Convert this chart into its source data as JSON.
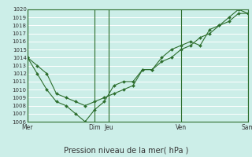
{
  "xlabel": "Pression niveau de la mer( hPa )",
  "ylim": [
    1006,
    1020
  ],
  "yticks": [
    1006,
    1007,
    1008,
    1009,
    1010,
    1011,
    1012,
    1013,
    1014,
    1015,
    1016,
    1017,
    1018,
    1019,
    1020
  ],
  "bg_color": "#cceee8",
  "line_color": "#2d6e2d",
  "grid_color": "#ffffff",
  "xtick_labels": [
    "Mer",
    "Dim",
    "Jeu",
    "Ven",
    "Sam"
  ],
  "xtick_positions": [
    0,
    7,
    8.5,
    16,
    23
  ],
  "vline_positions": [
    0,
    7,
    8.5,
    16,
    23
  ],
  "line1_x": [
    0,
    1,
    2,
    3,
    4,
    5,
    6,
    7,
    8,
    9,
    10,
    11,
    12,
    13,
    14,
    15,
    16,
    17,
    18,
    19,
    20,
    21,
    22,
    23
  ],
  "line1_y": [
    1014,
    1013,
    1012,
    1009.5,
    1009,
    1008.5,
    1008,
    1008.5,
    1009,
    1009.5,
    1010,
    1010.5,
    1012.5,
    1012.5,
    1014,
    1015,
    1015.5,
    1016,
    1015.5,
    1017.5,
    1018,
    1019,
    1020,
    1019.5
  ],
  "line2_x": [
    0,
    1,
    2,
    3,
    4,
    5,
    6,
    7,
    8,
    9,
    10,
    11,
    12,
    13,
    14,
    15,
    16,
    17,
    18,
    19,
    20,
    21,
    22,
    23
  ],
  "line2_y": [
    1014,
    1012,
    1010,
    1008.5,
    1008,
    1007,
    1006,
    1007.5,
    1008.5,
    1010.5,
    1011,
    1011,
    1012.5,
    1012.5,
    1013.5,
    1014,
    1015,
    1015.5,
    1016.5,
    1017,
    1018,
    1018.5,
    1019.5,
    1019.5
  ],
  "figsize": [
    3.2,
    2.0
  ],
  "dpi": 100
}
